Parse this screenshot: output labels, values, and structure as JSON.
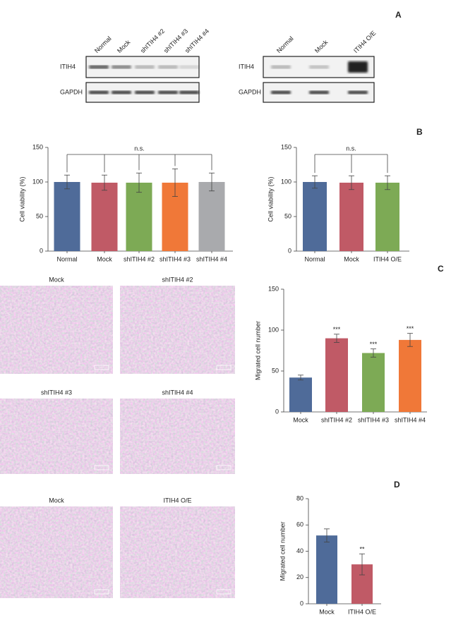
{
  "panels": [
    "A",
    "B",
    "C",
    "D"
  ],
  "gel_left": {
    "lanes": [
      "Normal",
      "Mock",
      "shITIH4 #2",
      "shITIH4 #3",
      "shITIH4 #4"
    ],
    "rows": [
      "ITIH4",
      "GAPDH"
    ]
  },
  "gel_right": {
    "lanes": [
      "Normal",
      "Mock",
      "ITIH4 O/E"
    ],
    "rows": [
      "ITIH4",
      "GAPDH"
    ]
  },
  "micrographs_c": [
    "Mock",
    "shITIH4 #2",
    "shITIH4 #3",
    "shITIH4 #4"
  ],
  "micrographs_d": [
    "Mock",
    "ITIH4 O/E"
  ],
  "chart_data": [
    {
      "type": "bar",
      "y_label": "Cell viability (%)",
      "categories": [
        "Normal",
        "Mock",
        "shITIH4 #2",
        "shITIH4 #3",
        "shITIH4 #4"
      ],
      "values": [
        100,
        99,
        99,
        99,
        100
      ],
      "errors": [
        10,
        11,
        14,
        20,
        13
      ],
      "colors": [
        "#4f6b99",
        "#c05a66",
        "#7daa55",
        "#f07838",
        "#a9aaad"
      ],
      "ylim": [
        0,
        150
      ],
      "yticks": [
        0,
        50,
        100,
        150
      ],
      "annotation": "n.s."
    },
    {
      "type": "bar",
      "y_label": "Cell viability (%)",
      "categories": [
        "Normal",
        "Mock",
        "ITIH4 O/E"
      ],
      "values": [
        100,
        99,
        99
      ],
      "errors": [
        9,
        10,
        10
      ],
      "colors": [
        "#4f6b99",
        "#c05a66",
        "#7daa55"
      ],
      "ylim": [
        0,
        150
      ],
      "yticks": [
        0,
        50,
        100,
        150
      ],
      "annotation": "n.s."
    },
    {
      "type": "bar",
      "y_label": "Migrated cell number",
      "categories": [
        "Mock",
        "shITIH4 #2",
        "shITIH4 #3",
        "shITIH4 #4"
      ],
      "values": [
        42,
        90,
        72,
        88
      ],
      "errors": [
        3,
        5,
        5,
        8
      ],
      "colors": [
        "#4f6b99",
        "#c05a66",
        "#7daa55",
        "#f07838"
      ],
      "significance": [
        null,
        "***",
        "***",
        "***"
      ],
      "ylim": [
        0,
        150
      ],
      "yticks": [
        0,
        50,
        100,
        150
      ]
    },
    {
      "type": "bar",
      "y_label": "Migrated cell number",
      "categories": [
        "Mock",
        "ITIH4 O/E"
      ],
      "values": [
        52,
        30
      ],
      "errors": [
        5,
        8
      ],
      "colors": [
        "#4f6b99",
        "#c05a66"
      ],
      "significance": [
        null,
        "**"
      ],
      "ylim": [
        0,
        80
      ],
      "yticks": [
        0,
        20,
        40,
        60,
        80
      ]
    }
  ]
}
